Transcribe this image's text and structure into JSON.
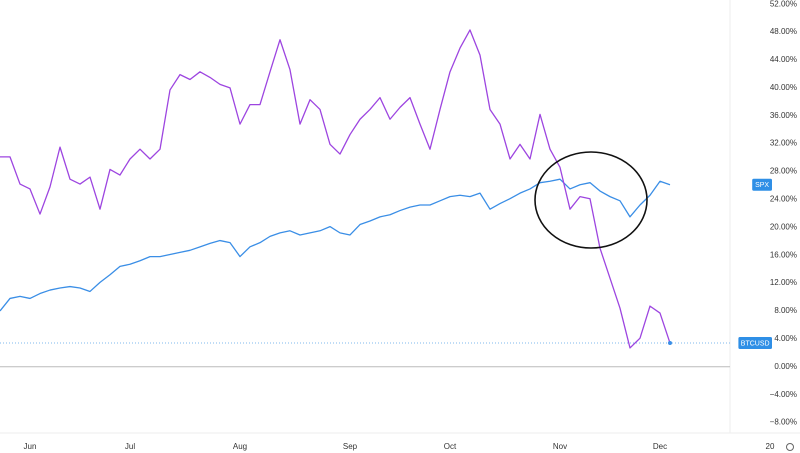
{
  "chart_data": {
    "type": "line",
    "categories": [
      null,
      null,
      null,
      "Jun",
      null,
      null,
      null,
      null,
      null,
      null,
      null,
      null,
      null,
      "Jul",
      null,
      null,
      null,
      null,
      null,
      null,
      null,
      null,
      null,
      null,
      "Aug",
      null,
      null,
      null,
      null,
      null,
      null,
      null,
      null,
      null,
      null,
      "Sep",
      null,
      null,
      null,
      null,
      null,
      null,
      null,
      null,
      null,
      "Oct",
      null,
      null,
      null,
      null,
      null,
      null,
      null,
      null,
      null,
      null,
      "Nov",
      null,
      null,
      null,
      null,
      null,
      null,
      null,
      null,
      null,
      "Dec",
      null,
      null,
      null,
      null,
      null,
      null,
      null,
      null,
      null,
      null,
      "20"
    ],
    "series": [
      {
        "name": "SPX",
        "color": "#3a8ee6",
        "values": [
          8.0,
          9.8,
          10.1,
          9.8,
          10.5,
          11.0,
          11.3,
          11.5,
          11.3,
          10.8,
          12.1,
          13.2,
          14.4,
          14.7,
          15.2,
          15.8,
          15.8,
          16.1,
          16.4,
          16.7,
          17.2,
          17.7,
          18.1,
          17.8,
          15.8,
          17.2,
          17.8,
          18.7,
          19.2,
          19.5,
          18.9,
          19.2,
          19.5,
          20.1,
          19.2,
          18.9,
          20.4,
          20.9,
          21.5,
          21.8,
          22.4,
          22.9,
          23.2,
          23.2,
          23.8,
          24.4,
          24.6,
          24.4,
          24.9,
          22.6,
          23.4,
          24.1,
          24.9,
          25.5,
          26.4,
          26.6,
          26.9,
          25.5,
          26.1,
          26.4,
          25.2,
          24.4,
          23.8,
          21.5,
          23.2,
          24.6,
          26.6,
          26.1,
          null,
          null,
          null,
          null,
          null,
          null,
          null,
          null,
          null,
          null
        ]
      },
      {
        "name": "BTCUSD",
        "color": "#9d45e0",
        "values": [
          30.1,
          30.1,
          26.2,
          25.5,
          21.9,
          25.8,
          31.5,
          26.9,
          26.2,
          27.2,
          22.6,
          28.3,
          27.5,
          29.8,
          31.2,
          29.8,
          31.2,
          39.7,
          41.9,
          41.2,
          42.3,
          41.5,
          40.5,
          40.0,
          34.8,
          37.6,
          37.6,
          42.3,
          46.9,
          42.6,
          34.8,
          38.3,
          36.9,
          31.9,
          30.5,
          33.3,
          35.5,
          36.9,
          38.6,
          35.5,
          37.2,
          38.6,
          34.8,
          31.2,
          36.9,
          42.3,
          45.7,
          48.3,
          44.7,
          36.9,
          34.8,
          29.8,
          31.9,
          29.8,
          36.2,
          31.2,
          28.6,
          22.6,
          24.4,
          24.1,
          17.0,
          12.7,
          8.4,
          2.7,
          4.1,
          8.7,
          7.7,
          3.4,
          null,
          null,
          null,
          null,
          null,
          null,
          null,
          null,
          null,
          null
        ]
      }
    ],
    "ylim": [
      -9.5,
      52.6
    ],
    "yticks": [
      {
        "value": 52,
        "label": "52.00%"
      },
      {
        "value": 48,
        "label": "48.00%"
      },
      {
        "value": 44,
        "label": "44.00%"
      },
      {
        "value": 40,
        "label": "40.00%"
      },
      {
        "value": 36,
        "label": "36.00%"
      },
      {
        "value": 32,
        "label": "32.00%"
      },
      {
        "value": 28,
        "label": "28.00%"
      },
      {
        "value": 24,
        "label": "24.00%"
      },
      {
        "value": 20,
        "label": "20.00%"
      },
      {
        "value": 16,
        "label": "16.00%"
      },
      {
        "value": 12,
        "label": "12.00%"
      },
      {
        "value": 8,
        "label": "8.00%"
      },
      {
        "value": 4,
        "label": "4.00%"
      },
      {
        "value": 0,
        "label": "0.00%"
      },
      {
        "value": -4,
        "label": "−4.00%"
      },
      {
        "value": -8,
        "label": "−8.00%"
      }
    ],
    "grid": false
  }
}
